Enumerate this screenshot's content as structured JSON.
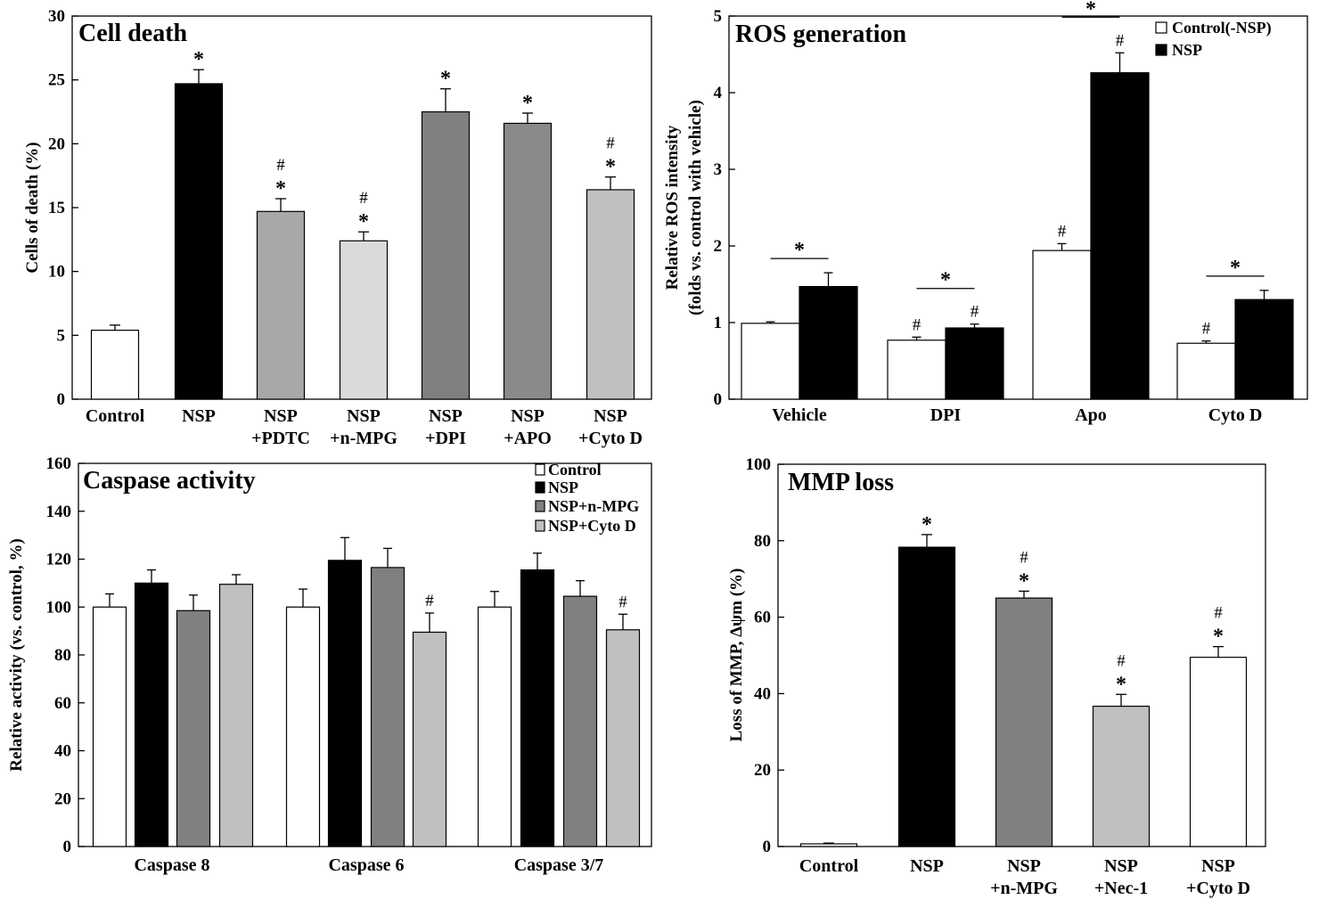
{
  "chart_data": [
    {
      "type": "bar",
      "title": "Cell death",
      "ylabel": "Cells of death (%)",
      "ylim": [
        0,
        30
      ],
      "yticks": [
        0,
        5,
        10,
        15,
        20,
        25,
        30
      ],
      "categories": [
        [
          "Control"
        ],
        [
          "NSP"
        ],
        [
          "NSP",
          "+PDTC"
        ],
        [
          "NSP",
          "+n-MPG"
        ],
        [
          "NSP",
          "+DPI"
        ],
        [
          "NSP",
          "+APO"
        ],
        [
          "NSP",
          "+Cyto D"
        ]
      ],
      "values": [
        5.4,
        24.7,
        14.7,
        12.4,
        22.5,
        21.6,
        16.4
      ],
      "errors": [
        0.4,
        1.1,
        1.0,
        0.7,
        1.8,
        0.8,
        1.0
      ],
      "colors": [
        "#ffffff",
        "#000000",
        "#a8a8a8",
        "#dadada",
        "#808080",
        "#8a8a8a",
        "#c0c0c0"
      ],
      "annotations": [
        [],
        [
          "*"
        ],
        [
          "*",
          "#"
        ],
        [
          "*",
          "#"
        ],
        [
          "*"
        ],
        [
          "*"
        ],
        [
          "*",
          "#"
        ]
      ]
    },
    {
      "type": "bar",
      "title": "ROS generation",
      "ylabel": [
        "Relative ROS intensity",
        "(folds vs. control with vehicle)"
      ],
      "ylim": [
        0,
        5
      ],
      "yticks": [
        0,
        1,
        2,
        3,
        4,
        5
      ],
      "legend_position": "top-right",
      "categories": [
        "Vehicle",
        "DPI",
        "Apo",
        "Cyto D"
      ],
      "series": [
        {
          "name": "Control(-NSP)",
          "color": "#ffffff",
          "values": [
            0.99,
            0.77,
            1.94,
            0.73
          ],
          "errors": [
            0.02,
            0.04,
            0.09,
            0.03
          ],
          "annotations": [
            "",
            "#",
            "#",
            "#"
          ]
        },
        {
          "name": "NSP",
          "color": "#000000",
          "values": [
            1.47,
            0.93,
            4.26,
            1.3
          ],
          "errors": [
            0.18,
            0.05,
            0.26,
            0.12
          ],
          "annotations": [
            "",
            "#",
            "#",
            ""
          ]
        }
      ],
      "brackets": [
        {
          "category": 0,
          "label": "*"
        },
        {
          "category": 1,
          "label": "*"
        },
        {
          "category": 2,
          "label": "*"
        },
        {
          "category": 3,
          "label": "*"
        }
      ]
    },
    {
      "type": "bar",
      "title": "Caspase activity",
      "ylabel": "Relative activity (vs. control, %)",
      "ylim": [
        0,
        160
      ],
      "yticks": [
        0,
        20,
        40,
        60,
        80,
        100,
        120,
        140,
        160
      ],
      "legend_position": "top-right",
      "categories": [
        "Caspase 8",
        "Caspase 6",
        "Caspase 3/7"
      ],
      "series": [
        {
          "name": "Control",
          "color": "#ffffff",
          "values": [
            100,
            100,
            100
          ],
          "errors": [
            5.5,
            7.5,
            6.5
          ],
          "annotations": [
            "",
            "",
            ""
          ]
        },
        {
          "name": "NSP",
          "color": "#000000",
          "values": [
            110,
            119.5,
            115.5
          ],
          "errors": [
            5.5,
            9.5,
            7
          ],
          "annotations": [
            "",
            "",
            ""
          ]
        },
        {
          "name": "NSP+n-MPG",
          "color": "#808080",
          "values": [
            98.5,
            116.5,
            104.5
          ],
          "errors": [
            6.5,
            8,
            6.5
          ],
          "annotations": [
            "",
            "",
            ""
          ]
        },
        {
          "name": "NSP+Cyto D",
          "color": "#c0c0c0",
          "values": [
            109.5,
            89.5,
            90.5
          ],
          "errors": [
            4,
            8,
            6.5
          ],
          "annotations": [
            "",
            "#",
            "#"
          ]
        }
      ]
    },
    {
      "type": "bar",
      "title": "MMP loss",
      "ylabel": "Loss of MMP, Δψm (%)",
      "ylim": [
        0,
        100
      ],
      "yticks": [
        0,
        20,
        40,
        60,
        80,
        100
      ],
      "categories": [
        [
          "Control"
        ],
        [
          "NSP"
        ],
        [
          "NSP",
          "+n-MPG"
        ],
        [
          "NSP",
          "+Nec-1"
        ],
        [
          "NSP",
          "+Cyto D"
        ]
      ],
      "values": [
        0.7,
        78.3,
        65,
        36.7,
        49.5
      ],
      "errors": [
        0.2,
        3.3,
        1.8,
        3.1,
        2.8
      ],
      "colors": [
        "#ffffff",
        "#000000",
        "#808080",
        "#c0c0c0",
        "#ffffff"
      ],
      "annotations": [
        [],
        [
          "*"
        ],
        [
          "*",
          "#"
        ],
        [
          "*",
          "#"
        ],
        [
          "*",
          "#"
        ]
      ]
    }
  ]
}
